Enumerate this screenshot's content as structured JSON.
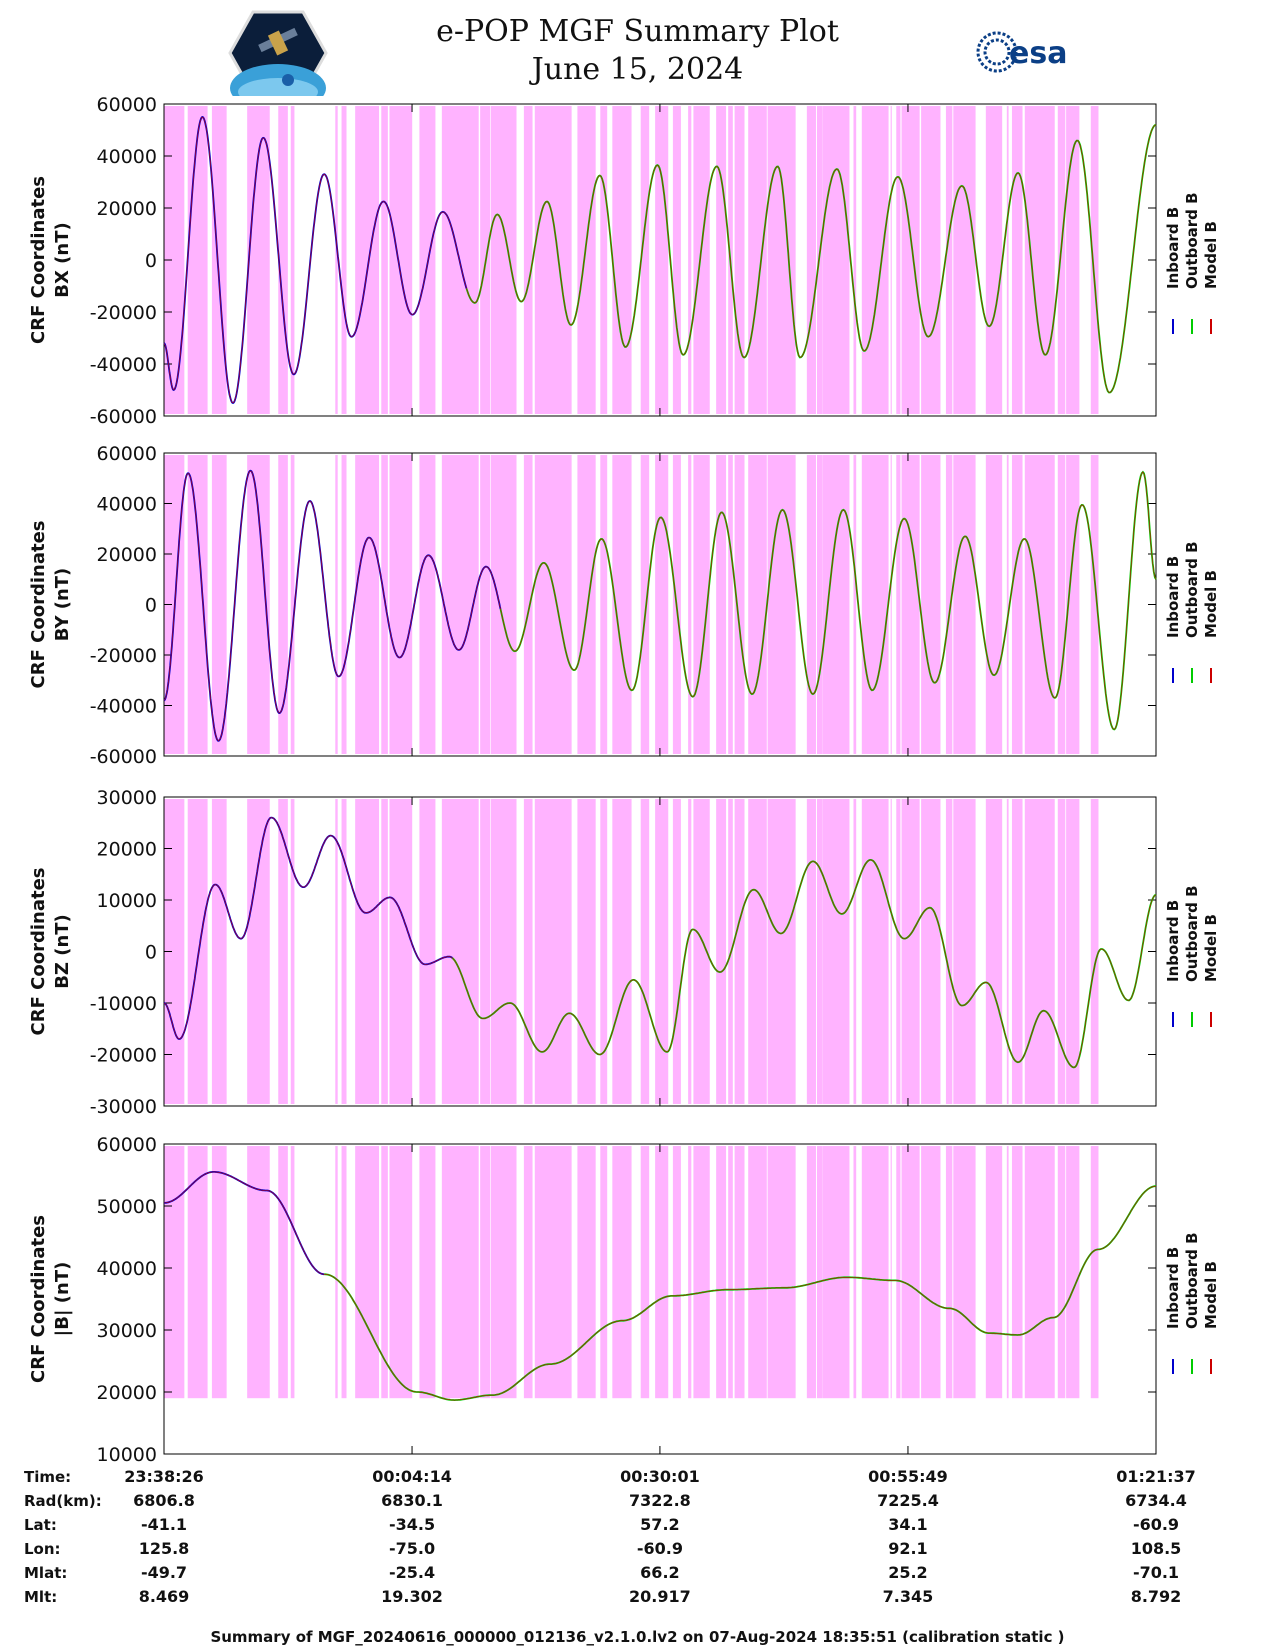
{
  "header": {
    "title": "e-POP MGF Summary Plot",
    "date": "June 15, 2024",
    "logo_left": "cassiope-satellite-logo",
    "logo_right": "esa-logo",
    "logo_right_text": "esa"
  },
  "colors": {
    "shade": "#ffb3ff",
    "shade_light": "#ffd6ff",
    "inboard": "#0000cc",
    "outboard": "#00cc00",
    "model": "#cc0000"
  },
  "legend": [
    "Inboard B",
    "Outboard B",
    "Model B"
  ],
  "shading_windows_sec": [
    [
      0,
      127
    ],
    [
      148,
      272
    ],
    [
      299,
      391
    ],
    [
      519,
      660
    ],
    [
      713,
      773
    ],
    [
      791,
      814
    ],
    [
      1069,
      1084
    ],
    [
      1108,
      1139
    ],
    [
      1193,
      1342
    ],
    [
      1356,
      1397
    ],
    [
      1407,
      1549
    ],
    [
      1594,
      1694
    ],
    [
      1734,
      1964
    ],
    [
      1973,
      2035
    ],
    [
      2039,
      2200
    ],
    [
      2246,
      2300
    ],
    [
      2314,
      2544
    ],
    [
      2580,
      2694
    ],
    [
      2723,
      2766
    ],
    [
      2798,
      2918
    ],
    [
      2975,
      3028
    ],
    [
      3065,
      3147
    ],
    [
      3176,
      3226
    ],
    [
      3271,
      3291
    ],
    [
      3304,
      3406
    ],
    [
      3446,
      3449
    ],
    [
      3451,
      3508
    ],
    [
      3521,
      3550
    ],
    [
      3561,
      3623
    ],
    [
      3646,
      3762
    ],
    [
      3767,
      3942
    ],
    [
      4012,
      4069
    ],
    [
      4075,
      4108
    ],
    [
      4109,
      4278
    ],
    [
      4303,
      4320
    ],
    [
      4355,
      4522
    ],
    [
      4535,
      4542
    ],
    [
      4570,
      4596
    ],
    [
      4603,
      4716
    ],
    [
      4725,
      4846
    ],
    [
      4880,
      4920
    ],
    [
      4926,
      5065
    ],
    [
      5129,
      5231
    ],
    [
      5260,
      5271
    ],
    [
      5292,
      5358
    ],
    [
      5372,
      5559
    ],
    [
      5578,
      5625
    ],
    [
      5630,
      5713
    ],
    [
      5784,
      5832
    ]
  ],
  "chart_data": [
    {
      "type": "line",
      "ylabel_line1": "CRF Coordinates",
      "ylabel_line2": "BX (nT)",
      "ylim": [
        -60000,
        60000
      ],
      "yticks": [
        -60000,
        -40000,
        -20000,
        0,
        20000,
        40000,
        60000
      ],
      "x_range_sec": [
        0,
        6191
      ],
      "series": [
        {
          "name": "Inboard B",
          "color": "#0000cc",
          "x_range": [
            0,
            1888
          ]
        },
        {
          "name": "Outboard B",
          "color": "#00cc00",
          "x_range": [
            1888,
            6191
          ]
        },
        {
          "name": "Model B",
          "color": "#cc0000",
          "x_range": [
            0,
            6191
          ]
        }
      ],
      "extrema_sec": [
        [
          0,
          -32000
        ],
        [
          60,
          -50000
        ],
        [
          240,
          55000
        ],
        [
          430,
          -55000
        ],
        [
          620,
          47000
        ],
        [
          810,
          -44000
        ],
        [
          1000,
          33000
        ],
        [
          1170,
          -29500
        ],
        [
          1370,
          22500
        ],
        [
          1550,
          -21000
        ],
        [
          1740,
          18500
        ],
        [
          1940,
          -16500
        ],
        [
          2080,
          17500
        ],
        [
          2230,
          -16000
        ],
        [
          2390,
          22500
        ],
        [
          2540,
          -25000
        ],
        [
          2720,
          32500
        ],
        [
          2880,
          -33500
        ],
        [
          3080,
          36500
        ],
        [
          3240,
          -36500
        ],
        [
          3450,
          36000
        ],
        [
          3620,
          -37500
        ],
        [
          3830,
          36000
        ],
        [
          3970,
          -37500
        ],
        [
          4200,
          35000
        ],
        [
          4370,
          -35000
        ],
        [
          4580,
          32000
        ],
        [
          4770,
          -29500
        ],
        [
          4980,
          28500
        ],
        [
          5150,
          -25500
        ],
        [
          5330,
          33500
        ],
        [
          5500,
          -36500
        ],
        [
          5700,
          46000
        ],
        [
          5900,
          -51000
        ],
        [
          6191,
          52000
        ]
      ]
    },
    {
      "type": "line",
      "ylabel_line1": "CRF Coordinates",
      "ylabel_line2": "BY (nT)",
      "ylim": [
        -60000,
        60000
      ],
      "yticks": [
        -60000,
        -40000,
        -20000,
        0,
        20000,
        40000,
        60000
      ],
      "x_range_sec": [
        0,
        6191
      ],
      "series": [
        {
          "name": "Inboard B",
          "color": "#0000cc",
          "x_range": [
            0,
            2100
          ]
        },
        {
          "name": "Outboard B",
          "color": "#00cc00",
          "x_range": [
            2100,
            6191
          ]
        },
        {
          "name": "Model B",
          "color": "#cc0000",
          "x_range": [
            0,
            6191
          ]
        }
      ],
      "extrema_sec": [
        [
          0,
          -38000
        ],
        [
          150,
          52000
        ],
        [
          340,
          -54000
        ],
        [
          540,
          53000
        ],
        [
          720,
          -43000
        ],
        [
          910,
          41000
        ],
        [
          1090,
          -28500
        ],
        [
          1280,
          26500
        ],
        [
          1470,
          -21000
        ],
        [
          1650,
          19500
        ],
        [
          1840,
          -18000
        ],
        [
          2010,
          15000
        ],
        [
          2190,
          -18500
        ],
        [
          2370,
          16500
        ],
        [
          2560,
          -26000
        ],
        [
          2730,
          26000
        ],
        [
          2920,
          -34000
        ],
        [
          3100,
          34500
        ],
        [
          3300,
          -36500
        ],
        [
          3480,
          36500
        ],
        [
          3670,
          -35500
        ],
        [
          3860,
          37500
        ],
        [
          4050,
          -35500
        ],
        [
          4240,
          37500
        ],
        [
          4420,
          -34000
        ],
        [
          4620,
          34000
        ],
        [
          4810,
          -31000
        ],
        [
          5000,
          27000
        ],
        [
          5180,
          -28000
        ],
        [
          5370,
          26000
        ],
        [
          5560,
          -37000
        ],
        [
          5730,
          39500
        ],
        [
          5930,
          -49500
        ],
        [
          6110,
          52500
        ],
        [
          6191,
          10000
        ]
      ]
    },
    {
      "type": "line",
      "ylabel_line1": "CRF Coordinates",
      "ylabel_line2": "BZ (nT)",
      "ylim": [
        -30000,
        30000
      ],
      "yticks": [
        -30000,
        -20000,
        -10000,
        0,
        10000,
        20000,
        30000
      ],
      "x_range_sec": [
        0,
        6191
      ],
      "series": [
        {
          "name": "Inboard B",
          "color": "#0000cc",
          "x_range": [
            0,
            1800
          ]
        },
        {
          "name": "Outboard B",
          "color": "#00cc00",
          "x_range": [
            1800,
            6191
          ]
        },
        {
          "name": "Model B",
          "color": "#cc0000",
          "x_range": [
            0,
            6191
          ]
        }
      ],
      "extrema_sec": [
        [
          0,
          -10000
        ],
        [
          95,
          -17000
        ],
        [
          320,
          13000
        ],
        [
          480,
          2500
        ],
        [
          670,
          26000
        ],
        [
          870,
          12500
        ],
        [
          1040,
          22500
        ],
        [
          1260,
          7500
        ],
        [
          1410,
          10500
        ],
        [
          1630,
          -2500
        ],
        [
          1780,
          -1000
        ],
        [
          1990,
          -13000
        ],
        [
          2160,
          -10000
        ],
        [
          2360,
          -19500
        ],
        [
          2530,
          -12000
        ],
        [
          2720,
          -20000
        ],
        [
          2930,
          -5500
        ],
        [
          3140,
          -19500
        ],
        [
          3300,
          4300
        ],
        [
          3470,
          -4000
        ],
        [
          3680,
          12000
        ],
        [
          3850,
          3500
        ],
        [
          4050,
          17500
        ],
        [
          4230,
          7300
        ],
        [
          4410,
          17800
        ],
        [
          4620,
          2500
        ],
        [
          4780,
          8500
        ],
        [
          4980,
          -10500
        ],
        [
          5130,
          -6000
        ],
        [
          5330,
          -21500
        ],
        [
          5490,
          -11500
        ],
        [
          5680,
          -22500
        ],
        [
          5850,
          500
        ],
        [
          6020,
          -9500
        ],
        [
          6191,
          11000
        ]
      ]
    },
    {
      "type": "line",
      "ylabel_line1": "CRF Coordinates",
      "ylabel_line2": "|B| (nT)",
      "ylim": [
        10000,
        60000
      ],
      "yticks": [
        10000,
        20000,
        30000,
        40000,
        50000,
        60000
      ],
      "x_range_sec": [
        0,
        6191
      ],
      "series": [
        {
          "name": "Inboard B",
          "color": "#0000cc",
          "x_range": [
            0,
            1000
          ]
        },
        {
          "name": "Outboard B",
          "color": "#00cc00",
          "x_range": [
            1000,
            6191
          ]
        },
        {
          "name": "Model B",
          "color": "#cc0000",
          "x_range": [
            0,
            6191
          ]
        }
      ],
      "extrema_sec": [
        [
          0,
          50500
        ],
        [
          310,
          55500
        ],
        [
          640,
          52500
        ],
        [
          1000,
          39000
        ],
        [
          1580,
          20000
        ],
        [
          1810,
          18700
        ],
        [
          2050,
          19500
        ],
        [
          2410,
          24500
        ],
        [
          2860,
          31500
        ],
        [
          3170,
          35500
        ],
        [
          3520,
          36500
        ],
        [
          3870,
          36800
        ],
        [
          4260,
          38500
        ],
        [
          4560,
          38000
        ],
        [
          4900,
          33500
        ],
        [
          5150,
          29500
        ],
        [
          5330,
          29200
        ],
        [
          5550,
          32000
        ],
        [
          5830,
          43000
        ],
        [
          6191,
          53200
        ]
      ]
    }
  ],
  "x_axis": {
    "row_labels": [
      "Time:",
      "Rad(km):",
      "Lat:",
      "Lon:",
      "Mlat:",
      "Mlt:"
    ],
    "ticks_sec": [
      0,
      1548,
      3095,
      4643,
      6191
    ],
    "columns": [
      [
        "23:38:26",
        "6806.8",
        "-41.1",
        "125.8",
        "-49.7",
        "8.469"
      ],
      [
        "00:04:14",
        "6830.1",
        "-34.5",
        "-75.0",
        "-25.4",
        "19.302"
      ],
      [
        "00:30:01",
        "7322.8",
        "57.2",
        "-60.9",
        "66.2",
        "20.917"
      ],
      [
        "00:55:49",
        "7225.4",
        "34.1",
        "92.1",
        "25.2",
        "7.345"
      ],
      [
        "01:21:37",
        "6734.4",
        "-60.9",
        "108.5",
        "-70.1",
        "8.792"
      ]
    ]
  },
  "footer": "Summary of MGF_20240616_000000_012136_v2.1.0.lv2 on 07-Aug-2024 18:35:51 (calibration static )"
}
